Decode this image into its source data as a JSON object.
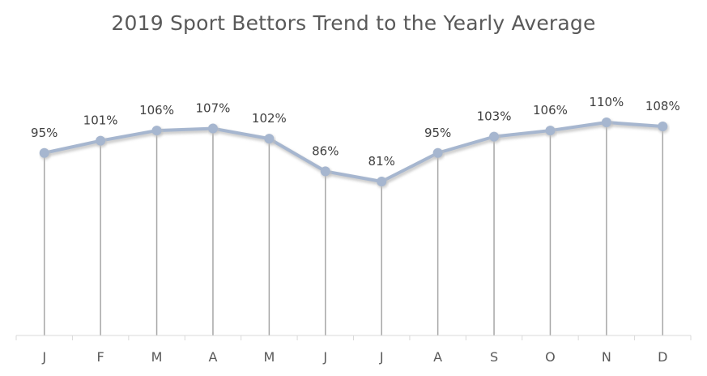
{
  "chart_data": {
    "type": "line",
    "title": "2019 Sport Bettors Trend to the Yearly Average",
    "categories": [
      "J",
      "F",
      "M",
      "A",
      "M",
      "J",
      "J",
      "A",
      "S",
      "O",
      "N",
      "D"
    ],
    "series": [
      {
        "values": [
          95,
          101,
          106,
          107,
          102,
          86,
          81,
          95,
          103,
          106,
          110,
          108
        ],
        "data_labels": [
          "95%",
          "101%",
          "106%",
          "107%",
          "102%",
          "86%",
          "81%",
          "95%",
          "103%",
          "106%",
          "110%",
          "108%"
        ]
      }
    ],
    "value_unit": "%",
    "drop_lines": true,
    "grid": false,
    "legend": "none",
    "colors": {
      "line": "#a6b6cf",
      "marker": "#a6b6cf",
      "shadow": "#bfbfbf",
      "drop_line": "#a6a6a6",
      "axis": "#d9d9d9",
      "text": "#595959"
    }
  }
}
